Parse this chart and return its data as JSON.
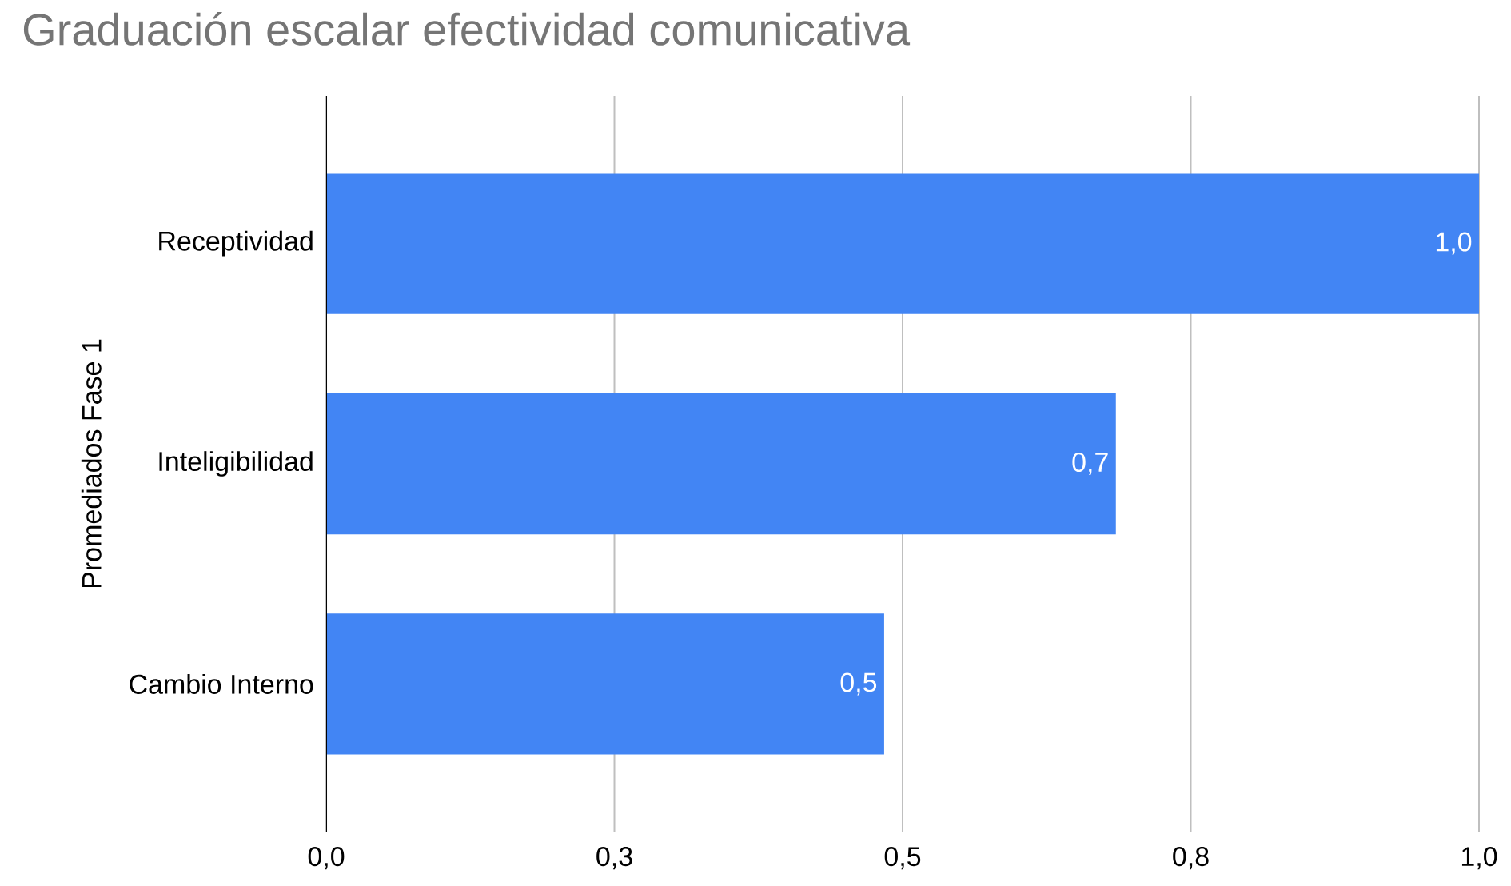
{
  "chart_data": {
    "type": "bar",
    "orientation": "horizontal",
    "title": "Graduación escalar efectividad comunicativa",
    "ylabel": "Promediados Fase 1",
    "categories": [
      "Receptividad",
      "Inteligibilidad",
      "Cambio Interno"
    ],
    "values": [
      1.0,
      0.685,
      0.484
    ],
    "value_labels": [
      "1,0",
      "0,7",
      "0,5"
    ],
    "color": "#4285f4",
    "xlim": [
      0,
      1.0
    ],
    "xticks": [
      {
        "value": 0,
        "label": "0,0"
      },
      {
        "value": 0.25,
        "label": "0,3"
      },
      {
        "value": 0.5,
        "label": "0,5"
      },
      {
        "value": 0.75,
        "label": "0,8"
      },
      {
        "value": 1.0,
        "label": "1,0"
      }
    ],
    "grid": "x"
  }
}
